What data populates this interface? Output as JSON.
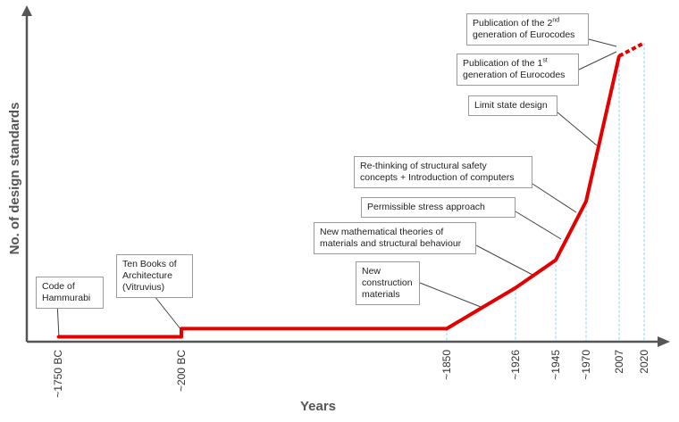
{
  "chart_data": {
    "type": "line",
    "xlabel": "Years",
    "ylabel": "No. of design standards",
    "tick_labels": [
      "~1750 BC",
      "~200 BC",
      "~1850",
      "~1926",
      "~1945",
      "~1970",
      "2007",
      "2020"
    ],
    "line_color": "#e30000",
    "leader_color": "#444444",
    "guide_color": "#8fd3e8",
    "axis_color": "#555555",
    "series": [
      {
        "points": [
          {
            "x": "~1750 BC",
            "y": 0.3
          },
          {
            "x": "~200 BC",
            "y": 0.3
          },
          {
            "x": "~200 BC",
            "y": 0.8
          },
          {
            "x": "~1850",
            "y": 0.8
          },
          {
            "x": "~1926",
            "y": 3.3
          },
          {
            "x": "~1945",
            "y": 5.0
          },
          {
            "x": "~1970",
            "y": 8.6
          },
          {
            "x": "2007",
            "y": 17.5
          }
        ],
        "projection": [
          {
            "x": "2007",
            "y": 17.5
          },
          {
            "x": "2020",
            "y": 18.3
          }
        ]
      }
    ],
    "annotations": [
      {
        "id": "hammurabi",
        "lines": [
          "Code of",
          "Hammurabi"
        ]
      },
      {
        "id": "vitruvius",
        "lines": [
          "Ten Books of",
          "Architecture",
          "(Vitruvius)"
        ]
      },
      {
        "id": "new-materials",
        "lines": [
          "New",
          "construction",
          "materials"
        ]
      },
      {
        "id": "math-theories",
        "lines": [
          "New mathematical theories of",
          "materials and structural behaviour"
        ]
      },
      {
        "id": "permissible",
        "lines": [
          "Permissible stress approach"
        ]
      },
      {
        "id": "rethinking",
        "lines": [
          "Re-thinking of structural safety",
          "concepts + Introduction of computers"
        ]
      },
      {
        "id": "limit-state",
        "lines": [
          "Limit state design"
        ]
      },
      {
        "id": "euro1",
        "pre": "Publication of the 1",
        "sup": "st",
        "post": "generation of Eurocodes"
      },
      {
        "id": "euro2",
        "pre": "Publication of the 2",
        "sup": "nd",
        "post": "generation of Eurocodes"
      }
    ]
  }
}
